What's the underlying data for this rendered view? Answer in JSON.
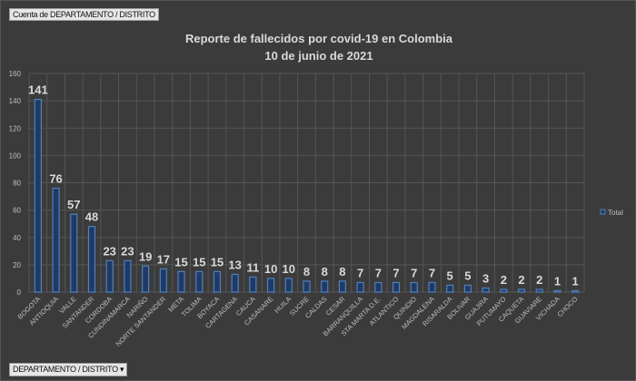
{
  "field_button": "Cuenta de DEPARTAMENTO  / DISTRITO",
  "axis_button": "DEPARTAMENTO  / DISTRITO",
  "axis_button_icon": "dropdown-arrow-icon",
  "chart_data": {
    "type": "bar",
    "title": "Reporte de fallecidos por covid-19 en Colombia",
    "subtitle": "10 de junio de 2021",
    "categories": [
      "BOGOTA",
      "ANTIOQUIA",
      "VALLE",
      "SANTANDER",
      "CORDOBA",
      "CUNDINAMARCA",
      "NARIÑO",
      "NORTE SANTANDER",
      "META",
      "TOLIMA",
      "BOYACA",
      "CARTAGENA",
      "CAUCA",
      "CASANARE",
      "HUILA",
      "SUCRE",
      "CALDAS",
      "CESAR",
      "BARRANQUILLA",
      "STA MARTA D.E.",
      "ATLANTICO",
      "QUINDIO",
      "MAGDALENA",
      "RISARALDA",
      "BOLIVAR",
      "GUAJIRA",
      "PUTUMAYO",
      "CAQUETA",
      "GUAVIARE",
      "VICHADA",
      "CHOCO"
    ],
    "series": [
      {
        "name": "Total",
        "values": [
          141,
          76,
          57,
          48,
          23,
          23,
          19,
          17,
          15,
          15,
          15,
          13,
          11,
          10,
          10,
          8,
          8,
          8,
          7,
          7,
          7,
          7,
          7,
          5,
          5,
          3,
          2,
          2,
          2,
          1,
          1
        ]
      }
    ],
    "ylim": [
      0,
      160
    ],
    "yticks": [
      0,
      20,
      40,
      60,
      80,
      100,
      120,
      140,
      160
    ],
    "grid": true,
    "legend": "right",
    "colors": {
      "bar_fill": "#1f3a66",
      "bar_edge": "#4f81bd",
      "text": "#d9d9d9",
      "grid": "#555555"
    }
  }
}
